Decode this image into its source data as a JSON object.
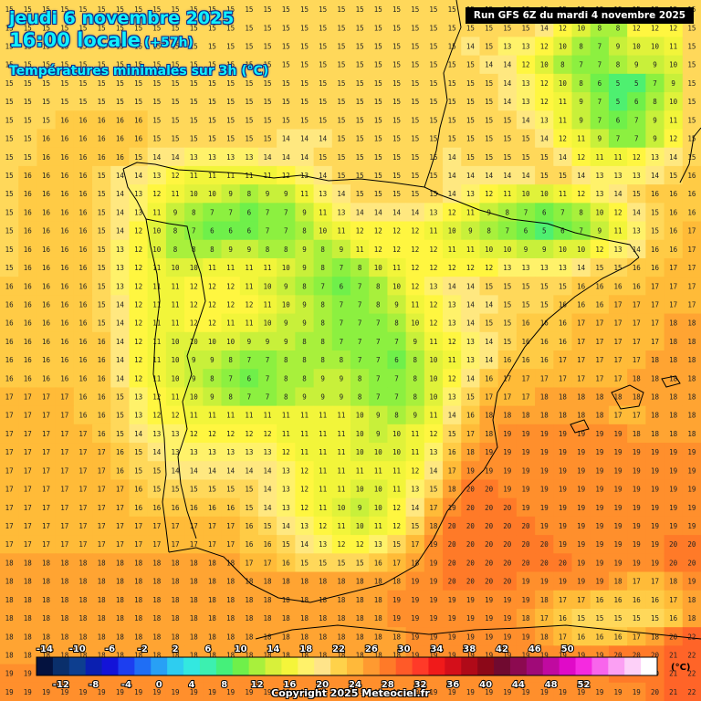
{
  "header": {
    "date_line": "jeudi 6 novembre 2025",
    "time_line": "16:00 locale",
    "offset": "(+57h)",
    "subtitle": "Températures minimales sur 3h (°C)"
  },
  "run_info": "Run GFS 6Z du mardi 4 novembre 2025",
  "copyright": "Copyright 2025 Meteociel.fr",
  "legend": {
    "unit": "(°C)",
    "top_ticks": [
      "-14",
      "-10",
      "-6",
      "-2",
      "2",
      "6",
      "10",
      "14",
      "18",
      "22",
      "26",
      "30",
      "34",
      "38",
      "42",
      "46",
      "50"
    ],
    "bottom_ticks": [
      "-12",
      "-8",
      "-4",
      "0",
      "4",
      "8",
      "12",
      "16",
      "20",
      "24",
      "28",
      "32",
      "36",
      "40",
      "44",
      "48",
      "52"
    ],
    "colors": [
      "#04123f",
      "#0a2f6b",
      "#0d3e8f",
      "#0a1fb0",
      "#1313d8",
      "#1c3ef0",
      "#1f6ef5",
      "#28a0f5",
      "#2ecdf0",
      "#33e8e0",
      "#3cf0b0",
      "#45f07a",
      "#6ff04a",
      "#a8f03c",
      "#d8f03a",
      "#f5f53a",
      "#fff26a",
      "#ffe48a",
      "#ffd24a",
      "#ffb93a",
      "#ff9a30",
      "#ff7a28",
      "#ff5a28",
      "#ff3a28",
      "#f01a1a",
      "#d40f1a",
      "#b00a18",
      "#8c0818",
      "#700a30",
      "#8c0a50",
      "#a00a78",
      "#c00aa0",
      "#e00ac8",
      "#f52ae0",
      "#f865ec",
      "#fba0f3",
      "#fdd0f8",
      "#ffffff"
    ]
  },
  "field": {
    "cols": 38,
    "rows": 38,
    "rows_data": [
      "15 15 15 15 15 15 15 15 15 15 15 15 15 15 15 15 15 15 15 15 15 15 15 15 15 15 15 15 15 15 15 15 15 15 15 15 15 15",
      "15 15 15 15 15 15 15 15 15 15 15 15 15 15 15 15 15 15 15 15 15 15 15 15 15 15 15 15 15 14 12 10 8 8 12 12 12 15",
      "15 15 15 15 15 15 15 15 15 15 15 15 15 15 15 15 15 15 15 15 15 15 15 15 15 14 15 13 13 12 10 8 7 9 10 10 11 15",
      "15 15 15 15 15 15 15 15 15 15 15 15 15 15 15 15 15 15 15 15 15 15 15 15 15 15 14 14 12 10 8 7 7 8 9 9 10 15",
      "15 15 15 15 15 15 15 15 15 15 15 15 15 15 15 15 15 15 15 15 15 15 15 15 15 15 15 14 13 12 10 8 6 5 5 7 9 15",
      "15 15 15 15 15 15 15 15 15 15 15 15 15 15 15 15 15 15 15 15 15 15 15 15 15 15 15 14 13 12 11 9 7 5 6 8 10 15",
      "15 15 15 16 16 16 16 16 15 15 15 15 15 15 15 15 15 15 15 15 15 15 15 15 15 15 15 15 14 13 11 9 7 6 7 9 11 15",
      "15 15 16 16 16 16 16 16 15 15 15 15 15 15 15 14 14 14 15 15 15 15 15 15 15 15 15 15 15 14 12 11 9 7 7 9 12 15",
      "15 15 16 16 16 16 16 15 14 14 13 13 13 13 14 14 14 15 15 15 15 15 15 15 14 15 15 15 15 15 14 12 11 11 12 13 14 15",
      "15 16 16 16 16 15 14 14 13 12 11 11 11 11 11 12 13 14 15 15 15 15 15 15 14 14 14 14 14 15 15 14 13 13 13 14 15 16",
      "15 16 16 16 16 15 14 13 12 11 10 10 9 8 9 9 11 13 14 15 15 15 15 15 14 13 12 11 10 10 11 12 13 14 15 16 16 16",
      "15 16 16 16 16 15 14 13 11 9 8 7 7 6 7 7 9 11 13 14 14 14 14 13 12 11 9 8 7 6 7 8 10 12 14 15 16 16",
      "15 16 16 16 16 15 14 12 10 8 7 6 6 6 7 7 8 10 11 12 12 12 12 11 10 9 8 7 6 5 6 7 9 11 13 15 16 17",
      "15 16 16 16 16 15 13 12 10 8 8 8 9 9 8 8 9 8 9 11 12 12 12 12 11 11 10 10 9 9 10 10 12 13 14 16 16 17",
      "15 16 16 16 16 15 13 12 11 10 10 11 11 11 11 10 9 8 7 8 10 11 12 12 12 12 12 13 13 13 13 14 15 15 16 16 17 17",
      "16 16 16 16 16 15 13 12 11 11 12 12 12 11 10 9 8 7 6 7 8 10 12 13 14 14 15 15 15 15 15 16 16 16 16 17 17 17",
      "16 16 16 16 16 15 14 12 11 11 12 12 12 12 11 10 9 8 7 7 8 9 11 12 13 14 14 15 15 15 16 16 16 17 17 17 17 17",
      "16 16 16 16 16 15 14 12 11 11 12 12 11 11 10 9 9 8 7 7 7 8 10 12 13 14 15 15 16 16 16 17 17 17 17 17 18 18",
      "16 16 16 16 16 16 14 12 11 10 10 10 10 9 9 9 8 8 7 7 7 7 9 11 12 13 14 15 16 16 16 17 17 17 17 17 18 18",
      "16 16 16 16 16 16 14 12 11 10 9 9 8 7 7 8 8 8 8 7 7 6 8 10 11 13 14 16 16 16 17 17 17 17 17 18 18 18",
      "16 16 16 16 16 16 14 12 11 10 9 8 7 6 7 8 8 9 9 8 7 7 8 10 12 14 16 17 17 17 17 17 17 17 18 18 18 18",
      "17 17 17 17 16 16 15 13 12 11 10 9 8 7 7 8 9 9 9 8 7 7 8 10 13 15 17 17 17 18 18 18 18 18 18 18 18 18",
      "17 17 17 17 16 16 15 13 12 12 11 11 11 11 11 11 11 11 11 10 9 8 9 11 14 16 18 18 18 18 18 18 18 17 17 18 18 18",
      "17 17 17 17 17 16 15 14 13 13 12 12 12 12 12 11 11 11 11 10 9 10 11 12 15 17 18 19 19 19 19 19 19 19 18 18 18 18",
      "17 17 17 17 17 17 16 15 14 13 13 13 13 13 13 12 11 11 11 10 10 10 11 13 16 18 19 19 19 19 19 19 19 19 19 19 19 19",
      "17 17 17 17 17 17 16 15 15 14 14 14 14 14 14 13 12 11 11 11 11 11 12 14 17 19 19 19 19 19 19 19 19 19 19 19 19 19",
      "17 17 17 17 17 17 17 16 15 15 15 15 15 15 14 13 12 11 11 10 10 11 13 15 18 20 20 19 19 19 19 19 19 19 19 19 19 19",
      "17 17 17 17 17 17 17 16 16 16 16 16 16 15 14 13 12 11 10 9 10 12 14 17 19 20 20 20 19 19 19 19 19 19 19 19 19 19",
      "17 17 17 17 17 17 17 17 17 17 17 17 17 16 15 14 13 12 11 10 11 12 15 18 20 20 20 20 20 19 19 19 19 19 19 19 19 19",
      "17 17 17 17 17 17 17 17 17 17 17 17 17 16 16 15 14 13 12 12 13 15 17 19 20 20 20 20 20 20 19 19 19 19 19 19 20 20",
      "18 18 18 18 18 18 18 18 18 18 18 18 18 17 17 16 15 15 15 15 16 17 18 19 20 20 20 20 20 20 20 19 19 19 19 19 20 20",
      "18 18 18 18 18 18 18 18 18 18 18 18 18 18 18 18 18 18 18 18 18 18 19 19 20 20 20 20 19 19 19 19 19 18 17 17 18 19",
      "18 18 18 18 18 18 18 18 18 18 18 18 18 18 18 18 18 18 18 18 18 19 19 19 19 19 19 19 19 18 17 17 16 16 16 16 17 18",
      "18 18 18 18 18 18 18 18 18 18 18 18 18 18 18 18 18 18 18 18 18 19 19 19 19 19 19 19 18 17 16 15 15 15 15 15 16 18",
      "18 18 18 18 18 18 18 18 18 18 18 18 18 18 18 18 18 18 18 18 18 18 19 19 19 19 19 19 19 18 17 16 16 16 17 18 20 22",
      "18 18 18 18 18 18 18 18 18 18 18 18 18 18 18 18 18 18 18 18 18 18 19 19 19 19 19 19 19 19 19 19 19 20 20 20 21 22",
      "19 19 19 19 19 19 19 19 19 19 19 19 19 19 19 19 19 19 19 19 19 19 19 19 19 19 19 19 19 19 19 19 19 20 20 20 21 22",
      "19 19 19 19 19 19 19 19 19 19 19 19 19 19 19 19 19 19 19 19 19 19 19 19 19 19 19 19 19 19 19 19 19 19 19 20 21 22"
    ]
  }
}
